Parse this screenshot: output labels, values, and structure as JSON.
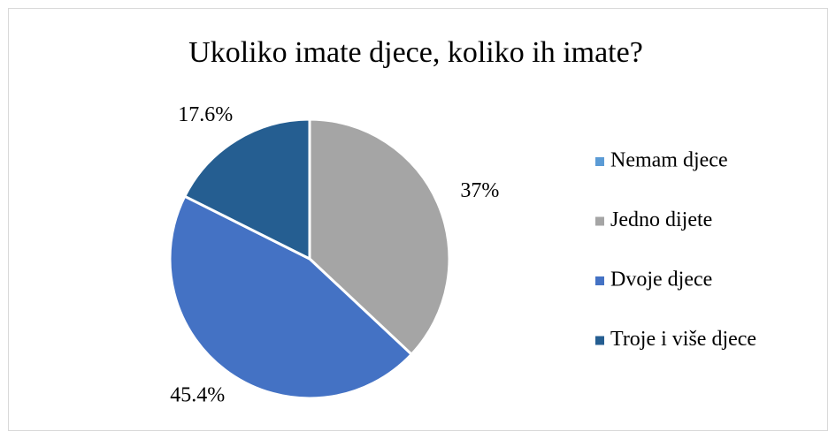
{
  "chart_data": {
    "type": "pie",
    "title": "Ukoliko imate djece, koliko ih imate?",
    "categories": [
      "Nemam djece",
      "Jedno dijete",
      "Dvoje djece",
      "Troje i više djece"
    ],
    "values": [
      0,
      37,
      45.4,
      17.6
    ],
    "value_labels": [
      null,
      "37%",
      "45.4%",
      "17.6%"
    ],
    "colors": [
      "#5b9bd5",
      "#a5a5a5",
      "#4472c4",
      "#255e91"
    ],
    "legend": "right"
  }
}
